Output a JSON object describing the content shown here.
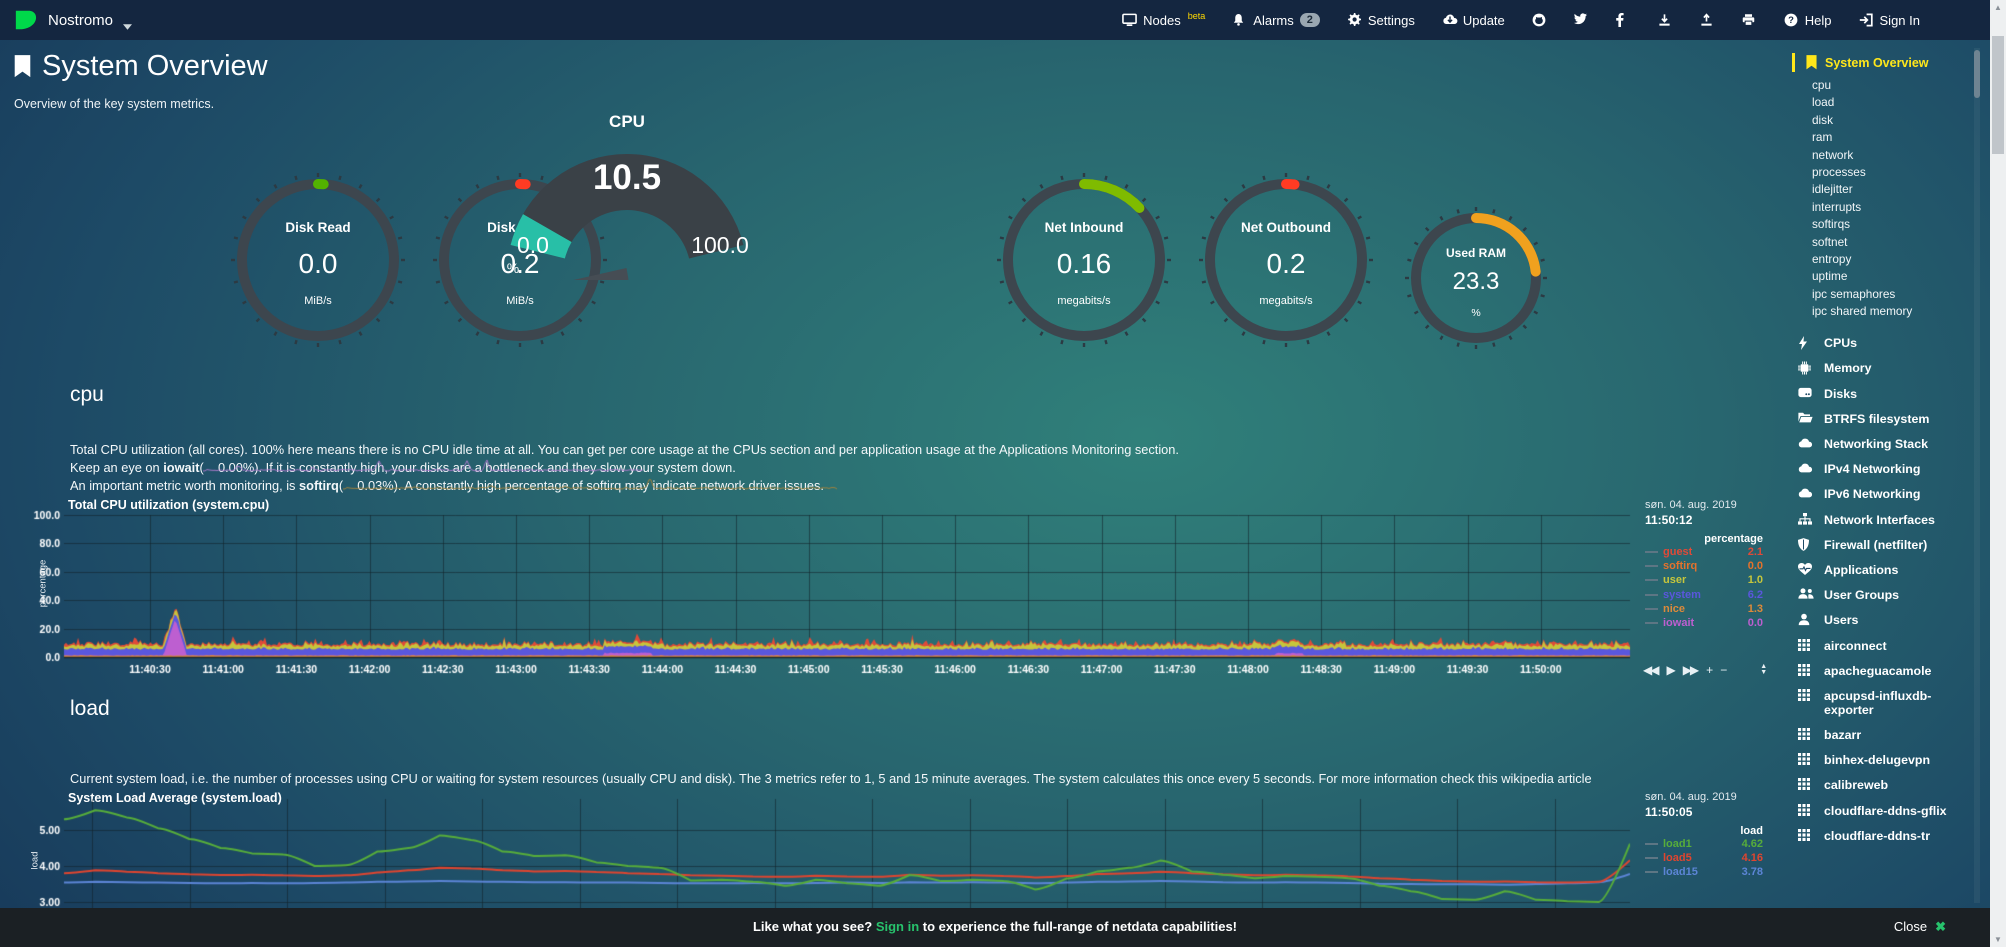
{
  "navbar": {
    "hostname": "Nostromo",
    "nodes_label": "Nodes",
    "beta": "beta",
    "alarms_label": "Alarms",
    "alarms_badge": "2",
    "settings_label": "Settings",
    "update_label": "Update",
    "help_label": "Help",
    "signin_label": "Sign In"
  },
  "header": {
    "title": "System Overview",
    "subtitle": "Overview of the key system metrics."
  },
  "gauges": {
    "disk_read": {
      "label": "Disk Read",
      "value": "0.0",
      "unit": "MiB/s",
      "color": "#53b300",
      "fraction": 0.01
    },
    "disk_write": {
      "label": "Disk Write",
      "value": "0.2",
      "unit": "MiB/s",
      "color": "#ff3b23",
      "fraction": 0.012
    },
    "cpu": {
      "title": "CPU",
      "value": "10.5",
      "min": "0.0",
      "max": "100.0",
      "unit": "%",
      "color": "#28bfa7"
    },
    "net_inbound": {
      "label": "Net Inbound",
      "value": "0.16",
      "unit": "megabits/s",
      "color": "#7fbb00",
      "fraction": 0.13
    },
    "net_outbound": {
      "label": "Net Outbound",
      "value": "0.2",
      "unit": "megabits/s",
      "color": "#ff3b23",
      "fraction": 0.018
    },
    "used_ram": {
      "label": "Used RAM",
      "value": "23.3",
      "unit": "%",
      "color": "#f0a11e",
      "fraction": 0.233
    }
  },
  "cpu_section": {
    "heading": "cpu",
    "description": "Total CPU utilization (all cores). 100% here means there is no CPU idle time at all. You can get per core usage at the CPUs section and per application usage at the Applications Monitoring section.",
    "iowait_prefix": "Keep an eye on ",
    "iowait_term": "iowait",
    "iowait_value": "(    0.00%).",
    "iowait_suffix": " If it is constantly high, your disks are a bottleneck and they slow your system down.",
    "iowait_spark_color": "#a879c8",
    "softirq_prefix": "An important metric worth monitoring, is ",
    "softirq_term": "softirq",
    "softirq_value": "(    0.03%).",
    "softirq_suffix": " A constantly high percentage of softirq may indicate network driver issues.",
    "softirq_spark_color": "#a1823d"
  },
  "load_section": {
    "heading": "load",
    "description": "Current system load, i.e. the number of processes using CPU or waiting for system resources (usually CPU and disk). The 3 metrics refer to 1, 5 and 15 minute averages. The system calculates this once every 5 seconds. For more information check this wikipedia article"
  },
  "toolbox": {
    "backward": "◀◀",
    "play": "▶",
    "forward": "▶▶",
    "zoom_in": "+",
    "zoom_out": "−",
    "resize_up": "▲",
    "resize_down": "▼"
  },
  "chart_data": [
    {
      "id": "cpu",
      "type": "area",
      "stacked": true,
      "title": "Total CPU utilization (system.cpu)",
      "ylabel": "percentage",
      "ylim": [
        0,
        100
      ],
      "grid": true,
      "yticks": [
        "0.0",
        "20.0",
        "40.0",
        "60.0",
        "80.0",
        "100.0"
      ],
      "xticks": [
        "11:40:30",
        "11:41:00",
        "11:41:30",
        "11:42:00",
        "11:42:30",
        "11:43:00",
        "11:43:30",
        "11:44:00",
        "11:44:30",
        "11:45:00",
        "11:45:30",
        "11:46:00",
        "11:46:30",
        "11:47:00",
        "11:47:30",
        "11:48:00",
        "11:48:30",
        "11:49:00",
        "11:49:30",
        "11:50:00"
      ],
      "legend_position": "right",
      "legend_date": "søn. 04. aug. 2019",
      "legend_time": "11:50:12",
      "legend_header": "percentage",
      "series": [
        {
          "name": "guest",
          "color": "#e04a38",
          "value": "2.1",
          "base": 0.8,
          "jitter": 1.0,
          "spike_chance": 0.1,
          "spike": 2.8
        },
        {
          "name": "softirq",
          "color": "#e4722c",
          "value": "0.0",
          "base": 0.05,
          "jitter": 0.1,
          "spike_chance": 0,
          "spike": 0
        },
        {
          "name": "user",
          "color": "#c6c63c",
          "value": "1.0",
          "base": 1.6,
          "jitter": 3.4,
          "spike_chance": 0.025,
          "spike": 3.0
        },
        {
          "name": "system",
          "color": "#5a57dd",
          "value": "6.2",
          "base": 4.1,
          "jitter": 2.1,
          "spike_chance": 0.03,
          "spike": 0.7
        },
        {
          "name": "nice",
          "color": "#dd8a3a",
          "value": "1.3",
          "base": 0.9,
          "jitter": 0.5,
          "spike_chance": 0,
          "spike": 0
        },
        {
          "name": "iowait",
          "color": "#bd5fd0",
          "value": "0.0",
          "base": 0.05,
          "jitter": 0.12,
          "spike_chance": 0.004,
          "spike": 24
        }
      ]
    },
    {
      "id": "load",
      "type": "line",
      "title": "System Load Average (system.load)",
      "ylabel": "load",
      "ylim": [
        2.9,
        5.7
      ],
      "grid": true,
      "yticks": [
        "3.00",
        "4.00",
        "5.00"
      ],
      "legend_position": "right",
      "legend_date": "søn. 04. aug. 2019",
      "legend_time": "11:50:05",
      "legend_header": "load",
      "series": [
        {
          "name": "load1",
          "color": "#57ad3a",
          "value": "4.62",
          "points": [
            5.3,
            5.55,
            5.35,
            5.05,
            4.75,
            4.5,
            4.35,
            4.32,
            4.0,
            4.02,
            4.4,
            4.5,
            4.85,
            4.72,
            4.4,
            4.28,
            4.3,
            4.1,
            4.0,
            3.95,
            3.6,
            3.62,
            3.56,
            3.45,
            3.62,
            3.52,
            3.45,
            3.75,
            3.58,
            3.62,
            3.58,
            3.35,
            3.65,
            3.85,
            3.95,
            4.15,
            3.85,
            3.76,
            3.66,
            3.72,
            3.7,
            3.66,
            3.45,
            3.3,
            3.08,
            3.06,
            3.3,
            3.06,
            3.02,
            3.0,
            4.62
          ]
        },
        {
          "name": "load5",
          "color": "#e0452f",
          "value": "4.16",
          "points": [
            3.8,
            3.88,
            3.84,
            3.8,
            3.77,
            3.75,
            3.76,
            3.74,
            3.72,
            3.74,
            3.82,
            3.88,
            3.95,
            3.93,
            3.88,
            3.85,
            3.86,
            3.83,
            3.8,
            3.78,
            3.74,
            3.73,
            3.71,
            3.7,
            3.73,
            3.71,
            3.7,
            3.76,
            3.73,
            3.74,
            3.72,
            3.68,
            3.72,
            3.78,
            3.8,
            3.84,
            3.8,
            3.77,
            3.74,
            3.76,
            3.74,
            3.71,
            3.66,
            3.62,
            3.58,
            3.56,
            3.57,
            3.55,
            3.54,
            3.56,
            4.16
          ]
        },
        {
          "name": "load15",
          "color": "#5c85d6",
          "value": "3.78",
          "points": [
            3.54,
            3.56,
            3.55,
            3.54,
            3.53,
            3.52,
            3.53,
            3.52,
            3.53,
            3.54,
            3.56,
            3.57,
            3.58,
            3.57,
            3.56,
            3.55,
            3.55,
            3.54,
            3.54,
            3.53,
            3.52,
            3.52,
            3.53,
            3.52,
            3.53,
            3.54,
            3.53,
            3.55,
            3.54,
            3.55,
            3.54,
            3.52,
            3.54,
            3.56,
            3.57,
            3.58,
            3.57,
            3.55,
            3.54,
            3.55,
            3.54,
            3.53,
            3.51,
            3.5,
            3.49,
            3.49,
            3.48,
            3.5,
            3.52,
            3.55,
            3.78
          ]
        }
      ]
    }
  ],
  "sidebar": {
    "active": {
      "label": "System Overview",
      "icon": "bookmark-icon"
    },
    "subitems": [
      "cpu",
      "load",
      "disk",
      "ram",
      "network",
      "processes",
      "idlejitter",
      "interrupts",
      "softirqs",
      "softnet",
      "entropy",
      "uptime",
      "ipc semaphores",
      "ipc shared memory"
    ],
    "sections": [
      {
        "label": "CPUs",
        "icon": "bolt-icon"
      },
      {
        "label": "Memory",
        "icon": "microchip-icon"
      },
      {
        "label": "Disks",
        "icon": "hdd-icon"
      },
      {
        "label": "BTRFS filesystem",
        "icon": "folder-open-icon"
      },
      {
        "label": "Networking Stack",
        "icon": "cloud-icon"
      },
      {
        "label": "IPv4 Networking",
        "icon": "cloud-icon"
      },
      {
        "label": "IPv6 Networking",
        "icon": "cloud-icon"
      },
      {
        "label": "Network Interfaces",
        "icon": "sitemap-icon"
      },
      {
        "label": "Firewall (netfilter)",
        "icon": "shield-icon"
      },
      {
        "label": "Applications",
        "icon": "heartbeat-icon"
      },
      {
        "label": "User Groups",
        "icon": "users-icon"
      },
      {
        "label": "Users",
        "icon": "user-icon"
      },
      {
        "label": "airconnect",
        "icon": "grid-icon"
      },
      {
        "label": "apacheguacamole",
        "icon": "grid-icon"
      },
      {
        "label": "apcupsd-influxdb-exporter",
        "icon": "grid-icon"
      },
      {
        "label": "bazarr",
        "icon": "grid-icon"
      },
      {
        "label": "binhex-delugevpn",
        "icon": "grid-icon"
      },
      {
        "label": "calibreweb",
        "icon": "grid-icon"
      },
      {
        "label": "cloudflare-ddns-gflix",
        "icon": "grid-icon"
      },
      {
        "label": "cloudflare-ddns-tr",
        "icon": "grid-icon"
      }
    ]
  },
  "footer": {
    "prefix": "Like what you see? ",
    "signin": "Sign in",
    "suffix": " to experience the full-range of netdata capabilities!",
    "close_label": "Close",
    "close_icon": "✖"
  }
}
